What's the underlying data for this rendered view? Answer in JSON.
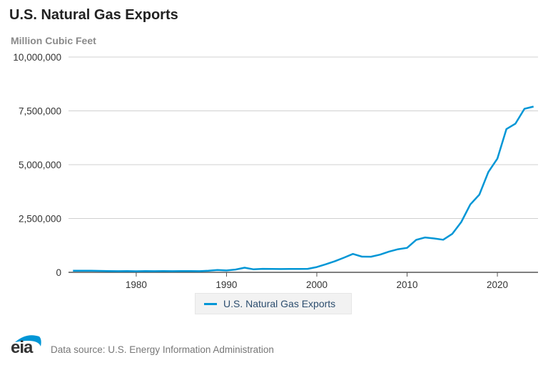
{
  "title": "U.S. Natural Gas Exports",
  "units_label": "Million Cubic Feet",
  "colors": {
    "series": "#0096d6",
    "grid": "#d0d0d0",
    "axis": "#555555"
  },
  "legend": {
    "label": "U.S. Natural Gas Exports"
  },
  "footer": {
    "logo_text": "eia",
    "source": "Data source: U.S. Energy Information Administration"
  },
  "chart_data": {
    "type": "line",
    "title": "U.S. Natural Gas Exports",
    "ylabel": "Million Cubic Feet",
    "xlabel": "",
    "xlim": [
      1972.5,
      2024.5
    ],
    "ylim": [
      0,
      10000000
    ],
    "grid": true,
    "legend_position": "bottom-center",
    "x_ticks": [
      1980,
      1990,
      2000,
      2010,
      2020
    ],
    "y_ticks": [
      0,
      2500000,
      5000000,
      7500000,
      10000000
    ],
    "y_tick_labels": [
      "0",
      "2,500,000",
      "5,000,000",
      "7,500,000",
      "10,000,000"
    ],
    "series": [
      {
        "name": "U.S. Natural Gas Exports",
        "x": [
          1973,
          1974,
          1975,
          1976,
          1977,
          1978,
          1979,
          1980,
          1981,
          1982,
          1983,
          1984,
          1985,
          1986,
          1987,
          1988,
          1989,
          1990,
          1991,
          1992,
          1993,
          1994,
          1995,
          1996,
          1997,
          1998,
          1999,
          2000,
          2001,
          2002,
          2003,
          2004,
          2005,
          2006,
          2007,
          2008,
          2009,
          2010,
          2011,
          2012,
          2013,
          2014,
          2015,
          2016,
          2017,
          2018,
          2019,
          2020,
          2021,
          2022,
          2023,
          2024
        ],
        "values": [
          77169,
          76789,
          72675,
          64706,
          55612,
          52532,
          55673,
          48731,
          59372,
          51728,
          54639,
          54536,
          55331,
          61085,
          53678,
          73579,
          106922,
          85565,
          129132,
          216355,
          140409,
          161594,
          154023,
          152885,
          157008,
          159006,
          163415,
          243716,
          373324,
          516233,
          680019,
          854449,
          728565,
          723849,
          822454,
          962657,
          1071890,
          1136789,
          1506133,
          1619004,
          1571558,
          1514201,
          1784473,
          2335219,
          3153920,
          3608071,
          4658238,
          5283976,
          6653130,
          6906591,
          7597484,
          7700000
        ]
      }
    ]
  }
}
